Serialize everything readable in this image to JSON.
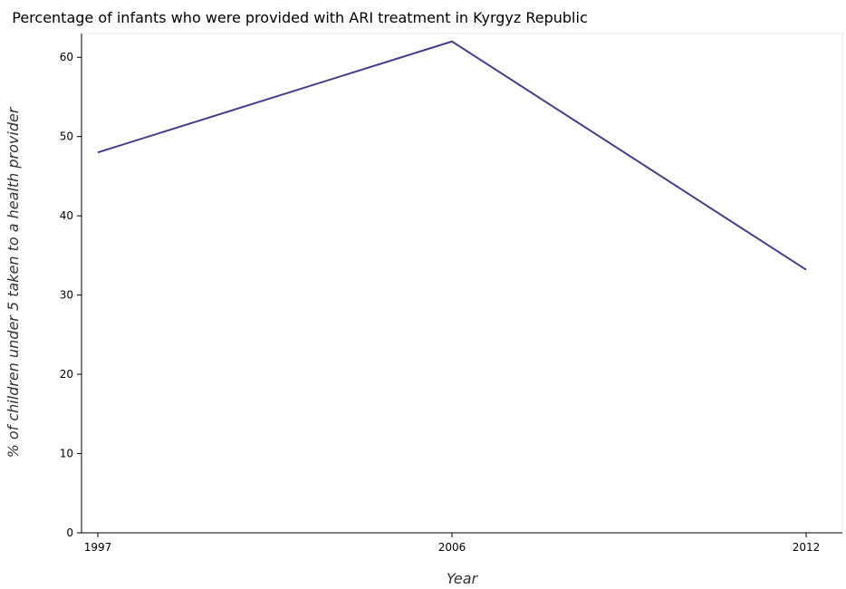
{
  "chart_data": {
    "type": "line",
    "title": "Percentage of infants who were provided with ARI treatment in Kyrgyz Republic",
    "xlabel": "Year",
    "ylabel": "% of children under 5 taken to a health provider",
    "categories": [
      "1997",
      "2006",
      "2012"
    ],
    "series": [
      {
        "values": [
          48.0,
          62.0,
          33.2
        ],
        "color": "#4b3b88"
      }
    ],
    "yticks": [
      0,
      10,
      20,
      30,
      40,
      50,
      60
    ],
    "ylim": [
      0,
      63
    ],
    "grid": false,
    "legend": "none"
  }
}
